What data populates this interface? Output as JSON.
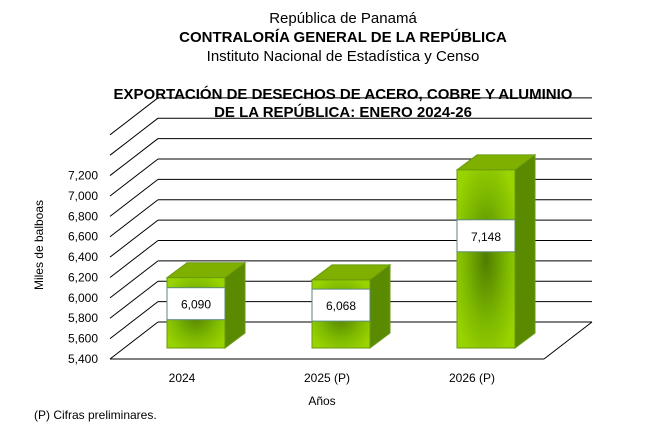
{
  "header": {
    "country": "República de Panamá",
    "office": "CONTRALORÍA GENERAL DE LA REPÚBLICA",
    "institute": "Instituto  Nacional de Estadística  y  Censo"
  },
  "footnote": "(P) Cifras  preliminares.",
  "colors": {
    "bar_front": "#8cc300",
    "bar_side": "#5a8a00",
    "bar_top": "#7fb000",
    "grid": "#000000"
  },
  "chart_data": {
    "type": "bar",
    "title_lines": [
      "EXPORTACIÓN DE DESECHOS DE ACERO, COBRE Y ALUMINIO",
      "DE LA REPÚBLICA: ENERO 2024-26"
    ],
    "categories": [
      "2024",
      "2025 (P)",
      "2026 (P)"
    ],
    "values": [
      6090,
      6068,
      7148
    ],
    "value_labels": [
      "6,090",
      "6,068",
      "7,148"
    ],
    "xlabel": "Años",
    "ylabel": "Miles de balboas",
    "ylim": [
      5400,
      7600
    ],
    "yticks": [
      5400,
      5600,
      5800,
      6000,
      6200,
      6400,
      6600,
      6800,
      7000,
      7200
    ],
    "ytick_labels": [
      "5,400",
      "5,600",
      "5,800",
      "6,000",
      "6,200",
      "6,400",
      "6,600",
      "6,800",
      "7,000",
      "7,200"
    ],
    "grid": true,
    "style": "3d"
  }
}
